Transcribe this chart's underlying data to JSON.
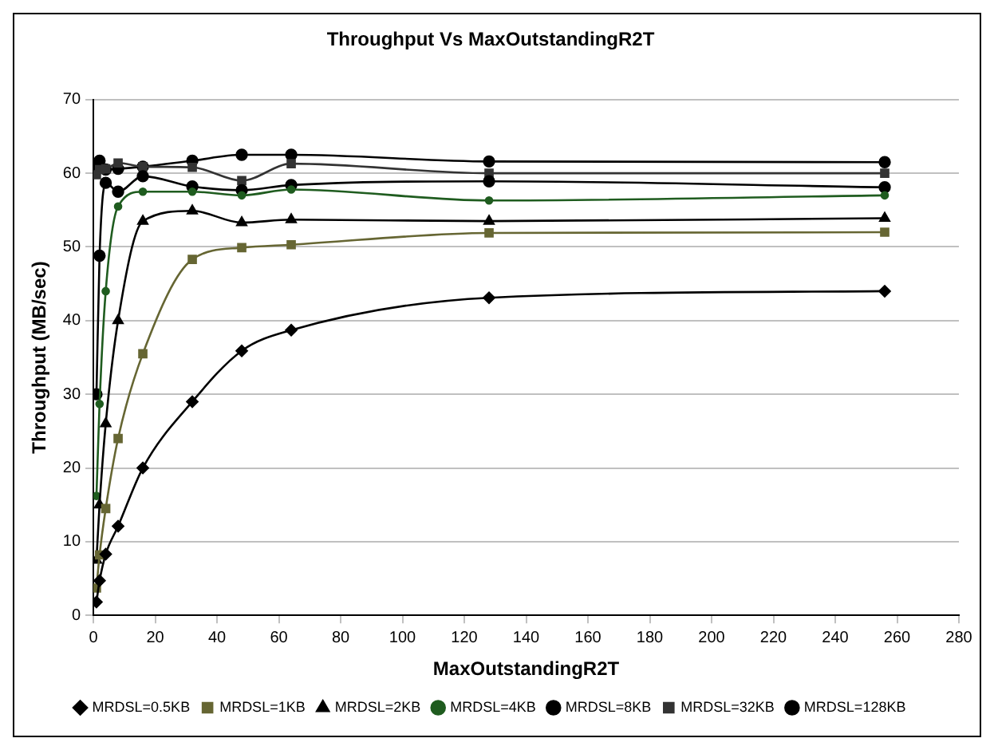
{
  "chart_data": {
    "type": "line",
    "title": "Throughput Vs MaxOutstandingR2T",
    "xlabel": "MaxOutstandingR2T",
    "ylabel": "Throughput (MB/sec)",
    "x": [
      1,
      2,
      4,
      8,
      16,
      32,
      48,
      64,
      128,
      256
    ],
    "series": [
      {
        "name": "MRDSL=0.5KB",
        "color": "#000000",
        "marker": "diamond",
        "values": [
          1.8,
          4.7,
          8.3,
          12.1,
          20,
          29,
          35.9,
          38.7,
          43.1,
          44
        ]
      },
      {
        "name": "MRDSL=1KB",
        "color": "#666633",
        "marker": "square",
        "values": [
          3.7,
          8.2,
          14.5,
          24,
          35.5,
          48.3,
          49.9,
          50.3,
          51.9,
          52
        ]
      },
      {
        "name": "MRDSL=2KB",
        "color": "#000000",
        "marker": "triangle",
        "values": [
          7.5,
          15,
          26,
          40,
          53.5,
          54.9,
          53.3,
          53.7,
          53.5,
          53.9
        ]
      },
      {
        "name": "MRDSL=4KB",
        "color": "#1f5c1f",
        "marker": "circle",
        "values": [
          16.2,
          28.7,
          44,
          55.5,
          57.5,
          57.5,
          57,
          57.8,
          56.3,
          57
        ]
      },
      {
        "name": "MRDSL=8KB",
        "color": "#000000",
        "marker": "circle",
        "values": [
          30,
          48.8,
          58.7,
          57.5,
          59.6,
          58.2,
          57.7,
          58.4,
          58.9,
          58.1
        ]
      },
      {
        "name": "MRDSL=32KB",
        "color": "#333333",
        "marker": "square",
        "values": [
          59.8,
          60.5,
          60.6,
          61.4,
          60.9,
          60.8,
          59,
          61.3,
          60,
          60
        ]
      },
      {
        "name": "MRDSL=128KB",
        "color": "#000000",
        "marker": "circle",
        "values": [
          61,
          61.7,
          60.5,
          60.6,
          60.9,
          61.7,
          62.5,
          62.5,
          61.6,
          61.5
        ]
      }
    ],
    "xlim": [
      0,
      280
    ],
    "xticks": [
      0,
      20,
      40,
      60,
      80,
      100,
      120,
      140,
      160,
      180,
      200,
      220,
      240,
      260,
      280
    ],
    "ylim": [
      0,
      70
    ],
    "yticks": [
      0,
      10,
      20,
      30,
      40,
      50,
      60,
      70
    ],
    "grid": "y",
    "legend": "bottom",
    "line_style": "solid"
  }
}
